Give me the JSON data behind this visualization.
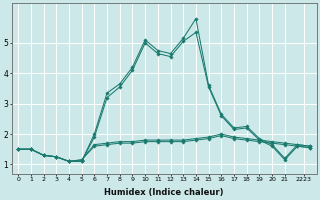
{
  "title": "",
  "xlabel": "Humidex (Indice chaleur)",
  "ylabel": "",
  "background_color": "#cce8e8",
  "grid_color": "#ffffff",
  "line_color": "#1a7a6e",
  "x_min": -0.5,
  "x_max": 23.5,
  "y_min": 0.7,
  "y_max": 6.3,
  "yticks": [
    1,
    2,
    3,
    4,
    5
  ],
  "xtick_labels": [
    "0",
    "1",
    "2",
    "3",
    "4",
    "5",
    "6",
    "7",
    "8",
    "9",
    "10",
    "11",
    "12",
    "13",
    "14",
    "15",
    "16",
    "17",
    "18",
    "19",
    "20",
    "21",
    "2223"
  ],
  "xtick_positions": [
    0,
    1,
    2,
    3,
    4,
    5,
    6,
    7,
    8,
    9,
    10,
    11,
    12,
    13,
    14,
    15,
    16,
    17,
    18,
    19,
    20,
    21,
    22.5
  ],
  "series": [
    {
      "x": [
        0,
        1,
        2,
        3,
        4,
        5,
        6,
        7,
        8,
        9,
        10,
        11,
        12,
        13,
        14,
        15,
        16,
        17,
        18,
        19,
        20,
        21,
        22,
        23
      ],
      "y": [
        1.5,
        1.5,
        1.3,
        1.25,
        1.1,
        1.15,
        1.6,
        1.65,
        1.7,
        1.7,
        1.75,
        1.75,
        1.75,
        1.75,
        1.8,
        1.85,
        1.95,
        1.85,
        1.8,
        1.75,
        1.7,
        1.65,
        1.6,
        1.55
      ]
    },
    {
      "x": [
        0,
        1,
        2,
        3,
        4,
        5,
        6,
        7,
        8,
        9,
        10,
        11,
        12,
        13,
        14,
        15,
        16,
        17,
        18,
        19,
        20,
        21,
        22,
        23
      ],
      "y": [
        1.5,
        1.5,
        1.3,
        1.25,
        1.1,
        1.15,
        1.65,
        1.7,
        1.75,
        1.75,
        1.8,
        1.8,
        1.8,
        1.8,
        1.85,
        1.9,
        2.0,
        1.9,
        1.85,
        1.8,
        1.75,
        1.7,
        1.65,
        1.6
      ]
    },
    {
      "x": [
        0,
        1,
        2,
        3,
        4,
        5,
        6,
        7,
        8,
        9,
        10,
        11,
        12,
        13,
        14,
        15,
        16,
        17,
        18,
        19,
        20,
        21,
        22,
        23
      ],
      "y": [
        1.5,
        1.5,
        1.3,
        1.25,
        1.1,
        1.1,
        1.9,
        3.2,
        3.55,
        4.1,
        5.0,
        4.65,
        4.55,
        5.05,
        5.35,
        3.55,
        2.6,
        2.15,
        2.2,
        1.8,
        1.6,
        1.15,
        1.6,
        1.55
      ]
    },
    {
      "x": [
        0,
        1,
        2,
        3,
        4,
        5,
        6,
        7,
        8,
        9,
        10,
        11,
        12,
        13,
        14,
        15,
        16,
        17,
        18,
        19,
        20,
        21,
        22,
        23
      ],
      "y": [
        1.5,
        1.5,
        1.3,
        1.25,
        1.1,
        1.1,
        2.0,
        3.35,
        3.65,
        4.2,
        5.1,
        4.75,
        4.65,
        5.15,
        5.8,
        3.6,
        2.65,
        2.2,
        2.25,
        1.85,
        1.65,
        1.2,
        1.65,
        1.6
      ]
    }
  ]
}
